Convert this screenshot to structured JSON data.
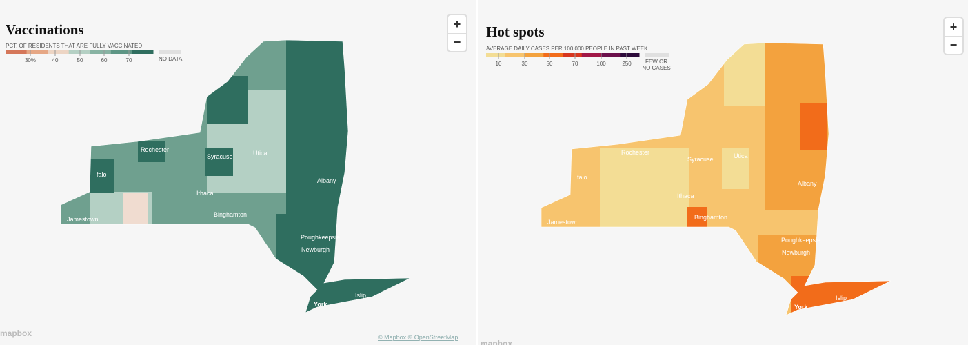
{
  "panels": [
    {
      "title": "Vaccinations",
      "legend": {
        "label": "PCT. OF RESIDENTS THAT ARE FULLY VACCINATED",
        "ticks": [
          "30%",
          "40",
          "50",
          "60",
          "70"
        ],
        "no_data": [
          "NO DATA"
        ]
      },
      "map_labels": [
        "Rochester",
        "Syracuse",
        "Utica",
        "Albany",
        "Ithaca",
        "Binghamton",
        "Jamestown",
        "Poughkeepsie",
        "Newburgh",
        "York",
        "Islip",
        "falo"
      ],
      "zoom": [
        "+",
        "−"
      ],
      "logo": "mapbox",
      "attribution": "© Mapbox © OpenStreetMap"
    },
    {
      "title": "Hot spots",
      "legend": {
        "label": "AVERAGE DAILY CASES PER 100,000 PEOPLE IN PAST WEEK",
        "ticks": [
          "10",
          "30",
          "50",
          "70",
          "100",
          "250"
        ],
        "no_data": [
          "FEW OR",
          "NO CASES"
        ]
      },
      "map_labels": [
        "Rochester",
        "Syracuse",
        "Utica",
        "Albany",
        "Ithaca",
        "Binghamton",
        "Jamestown",
        "Poughkeepsie",
        "Newburgh",
        "York",
        "Islip",
        "falo"
      ],
      "zoom": [
        "+",
        "−"
      ],
      "logo": "mapbox"
    }
  ]
}
